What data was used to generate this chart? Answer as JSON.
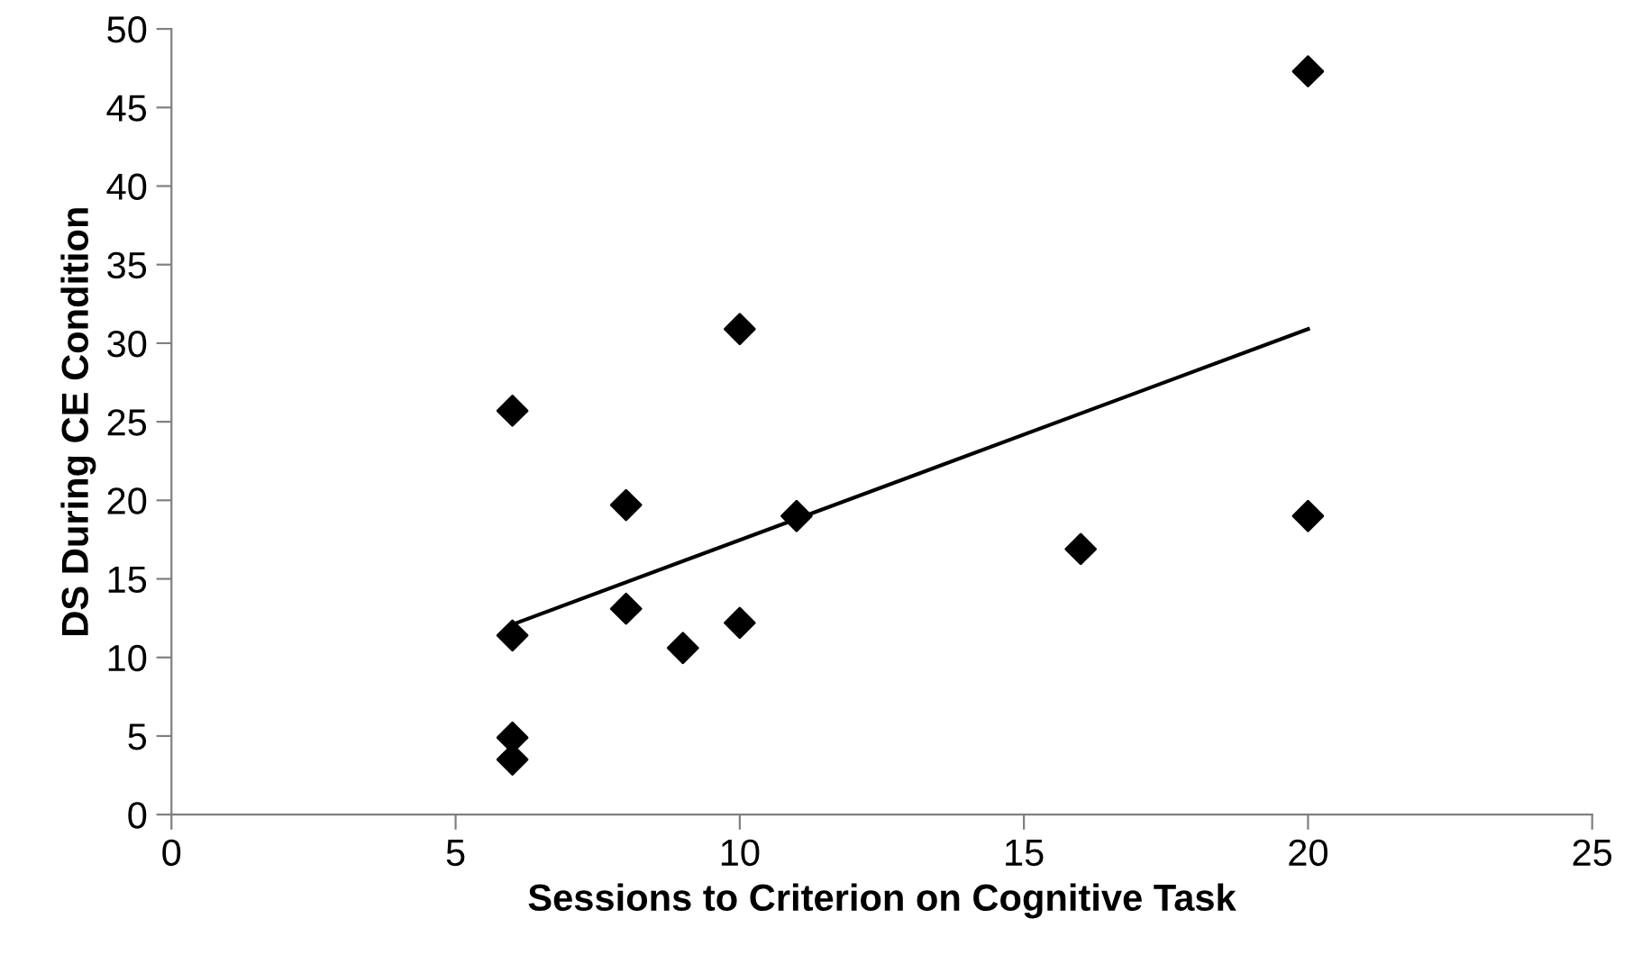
{
  "chart_data": {
    "type": "scatter",
    "xlabel": "Sessions to Criterion on Cognitive Task",
    "ylabel": "DS During CE Condition",
    "xlim": [
      0,
      25
    ],
    "xticks": [
      0,
      5,
      10,
      15,
      20,
      25
    ],
    "ylim": [
      0,
      50
    ],
    "yticks": [
      0,
      5,
      10,
      15,
      20,
      25,
      30,
      35,
      40,
      45,
      50
    ],
    "grid": false,
    "legend": false,
    "series": [
      {
        "color": "#000000",
        "marker": "diamond",
        "x": [
          6,
          6,
          6,
          6,
          8,
          8,
          9,
          10,
          10,
          11,
          16,
          20,
          20
        ],
        "values": [
          25.7,
          11.4,
          4.9,
          3.5,
          19.7,
          13.1,
          10.6,
          30.9,
          12.2,
          19.0,
          16.9,
          47.3,
          19.0
        ]
      },
      {
        "type": "line",
        "color": "#000000",
        "marker": "none",
        "line_style": "solid",
        "x": [
          6,
          20
        ],
        "values": [
          12.1,
          30.9
        ]
      }
    ]
  }
}
